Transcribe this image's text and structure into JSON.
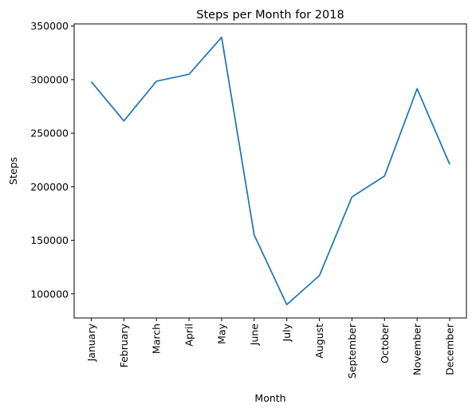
{
  "chart_data": {
    "type": "line",
    "title": "Steps per Month for 2018",
    "xlabel": "Month",
    "ylabel": "Steps",
    "categories": [
      "January",
      "February",
      "March",
      "April",
      "May",
      "June",
      "July",
      "August",
      "September",
      "October",
      "November",
      "December"
    ],
    "series": [
      {
        "values": [
          298000,
          261500,
          298500,
          305000,
          339500,
          155000,
          90000,
          117000,
          190500,
          210000,
          291500,
          221000
        ],
        "color": "#1f77b4"
      }
    ],
    "ylim": [
      77500,
      352000
    ],
    "yticks": [
      100000,
      150000,
      200000,
      250000,
      300000,
      350000
    ],
    "ytick_labels": [
      "100000",
      "150000",
      "200000",
      "250000",
      "300000",
      "350000"
    ],
    "grid": false,
    "legend": "none"
  }
}
